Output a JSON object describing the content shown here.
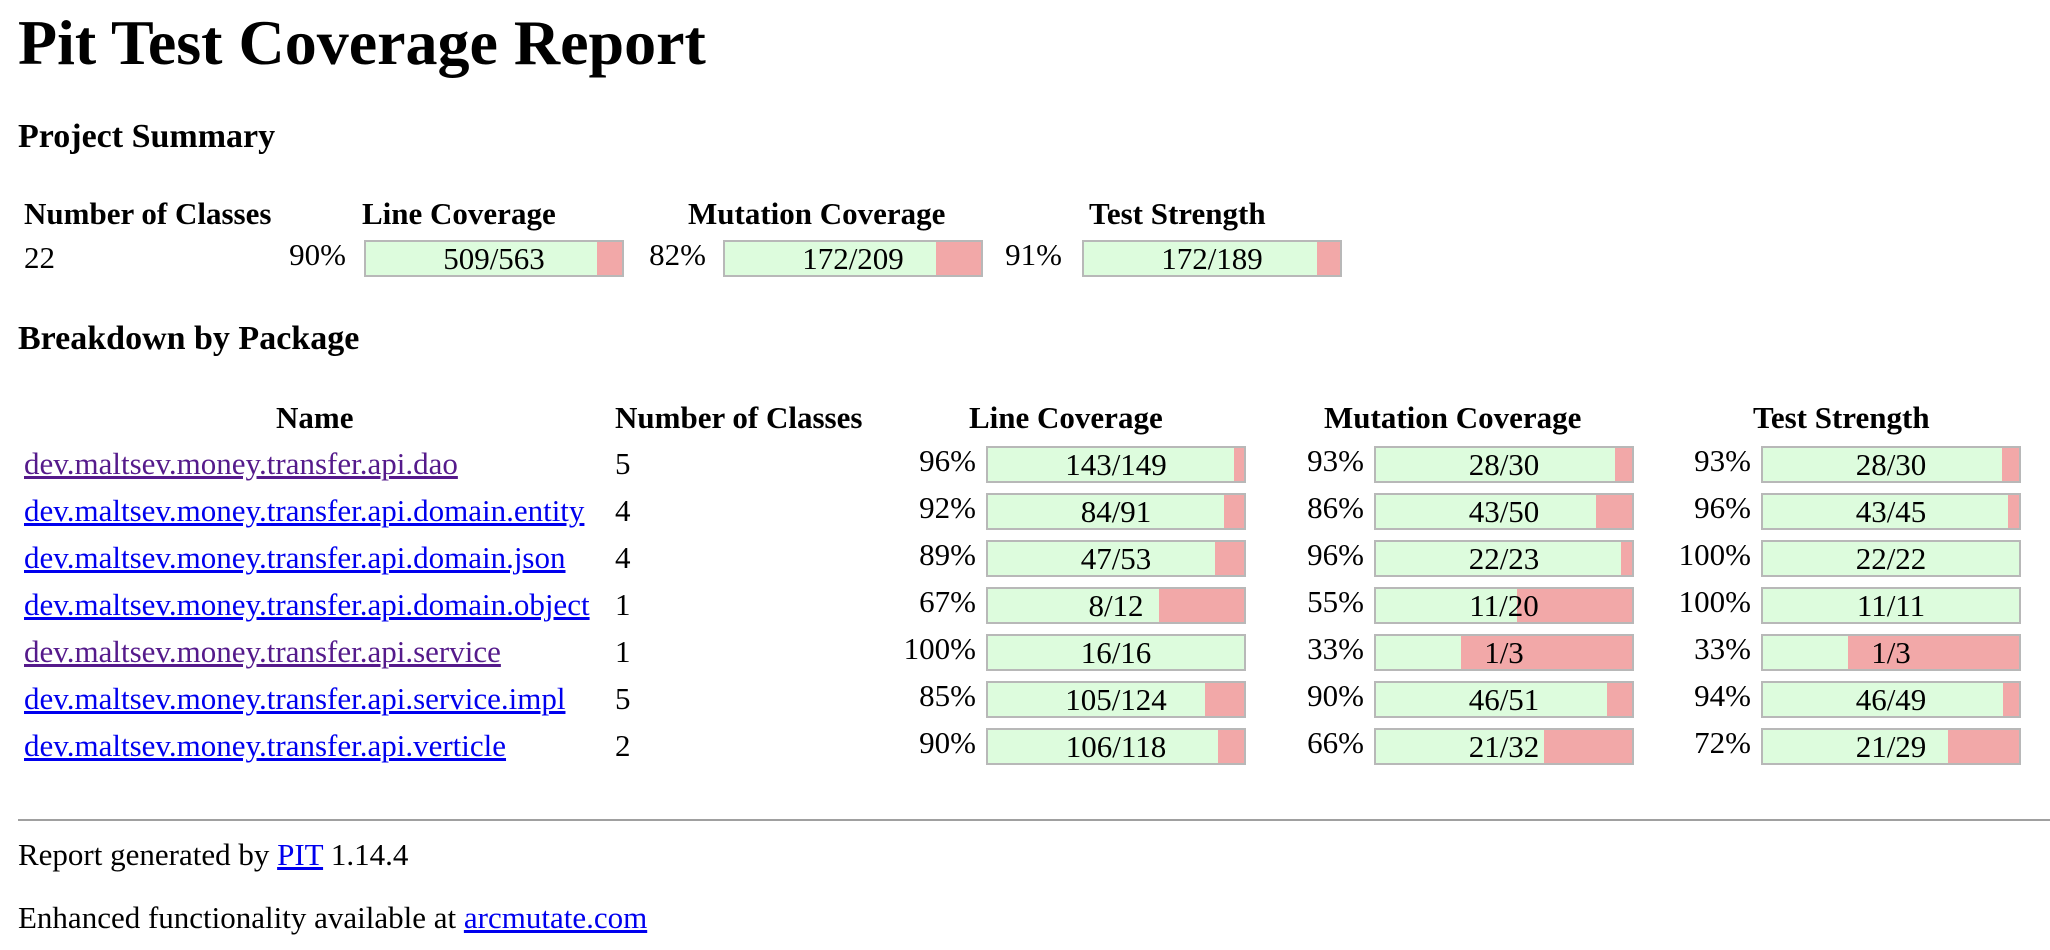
{
  "title": "Pit Test Coverage Report",
  "project_summary": {
    "heading": "Project Summary",
    "headers": {
      "classes": "Number of Classes",
      "line": "Line Coverage",
      "mutation": "Mutation Coverage",
      "strength": "Test Strength"
    },
    "classes": "22",
    "line": {
      "pct": "90%",
      "text": "509/563",
      "ratio": 0.904
    },
    "mutation": {
      "pct": "82%",
      "text": "172/209",
      "ratio": 0.823
    },
    "strength": {
      "pct": "91%",
      "text": "172/189",
      "ratio": 0.91
    }
  },
  "breakdown": {
    "heading": "Breakdown by Package",
    "headers": {
      "name": "Name",
      "classes": "Number of Classes",
      "line": "Line Coverage",
      "mutation": "Mutation Coverage",
      "strength": "Test Strength"
    },
    "rows": [
      {
        "name": "dev.maltsev.money.transfer.api.dao",
        "visited": true,
        "classes": "5",
        "line": {
          "pct": "96%",
          "text": "143/149",
          "ratio": 0.96
        },
        "mutation": {
          "pct": "93%",
          "text": "28/30",
          "ratio": 0.933
        },
        "strength": {
          "pct": "93%",
          "text": "28/30",
          "ratio": 0.933
        }
      },
      {
        "name": "dev.maltsev.money.transfer.api.domain.entity",
        "visited": false,
        "classes": "4",
        "line": {
          "pct": "92%",
          "text": "84/91",
          "ratio": 0.923
        },
        "mutation": {
          "pct": "86%",
          "text": "43/50",
          "ratio": 0.86
        },
        "strength": {
          "pct": "96%",
          "text": "43/45",
          "ratio": 0.956
        }
      },
      {
        "name": "dev.maltsev.money.transfer.api.domain.json",
        "visited": false,
        "classes": "4",
        "line": {
          "pct": "89%",
          "text": "47/53",
          "ratio": 0.887
        },
        "mutation": {
          "pct": "96%",
          "text": "22/23",
          "ratio": 0.957
        },
        "strength": {
          "pct": "100%",
          "text": "22/22",
          "ratio": 1.0
        }
      },
      {
        "name": "dev.maltsev.money.transfer.api.domain.object",
        "visited": false,
        "classes": "1",
        "line": {
          "pct": "67%",
          "text": "8/12",
          "ratio": 0.667
        },
        "mutation": {
          "pct": "55%",
          "text": "11/20",
          "ratio": 0.55
        },
        "strength": {
          "pct": "100%",
          "text": "11/11",
          "ratio": 1.0
        }
      },
      {
        "name": "dev.maltsev.money.transfer.api.service",
        "visited": true,
        "classes": "1",
        "line": {
          "pct": "100%",
          "text": "16/16",
          "ratio": 1.0
        },
        "mutation": {
          "pct": "33%",
          "text": "1/3",
          "ratio": 0.333
        },
        "strength": {
          "pct": "33%",
          "text": "1/3",
          "ratio": 0.333
        }
      },
      {
        "name": "dev.maltsev.money.transfer.api.service.impl",
        "visited": false,
        "classes": "5",
        "line": {
          "pct": "85%",
          "text": "105/124",
          "ratio": 0.847
        },
        "mutation": {
          "pct": "90%",
          "text": "46/51",
          "ratio": 0.902
        },
        "strength": {
          "pct": "94%",
          "text": "46/49",
          "ratio": 0.939
        }
      },
      {
        "name": "dev.maltsev.money.transfer.api.verticle",
        "visited": false,
        "classes": "2",
        "line": {
          "pct": "90%",
          "text": "106/118",
          "ratio": 0.898
        },
        "mutation": {
          "pct": "66%",
          "text": "21/32",
          "ratio": 0.656
        },
        "strength": {
          "pct": "72%",
          "text": "21/29",
          "ratio": 0.724
        }
      }
    ]
  },
  "footer": {
    "generated_prefix": "Report generated by",
    "generated_link": "PIT",
    "generated_suffix": "1.14.4",
    "enhanced_prefix": "Enhanced functionality available at",
    "enhanced_link": "arcmutate.com"
  },
  "colors": {
    "covered": "#ddfcdd",
    "uncovered": "#f2a8a8",
    "link": "#0000ee",
    "visited_link": "#551a8b"
  }
}
